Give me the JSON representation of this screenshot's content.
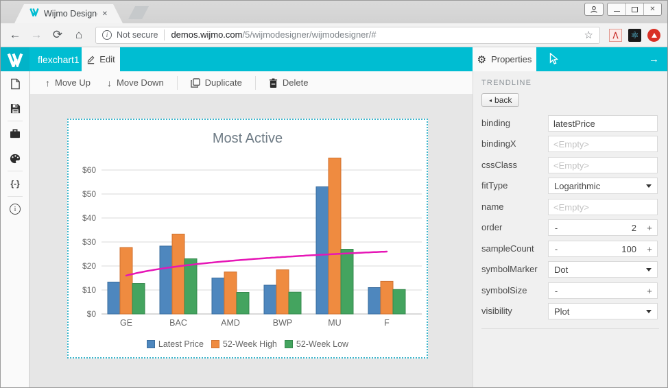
{
  "browser": {
    "tab_title": "Wijmo Designer",
    "close_glyph": "✕",
    "secure_label": "Not secure",
    "url_host": "demos.wijmo.com",
    "url_path": "/5/wijmodesigner/wijmodesigner/#"
  },
  "icons": {
    "back_arrow": "←",
    "forward_arrow": "→",
    "reload": "⟳",
    "home": "⌂",
    "star": "☆",
    "minimize": "",
    "close": "✕",
    "gear": "⚙",
    "atom": "⚛",
    "move_up_arrow": "↑",
    "move_down_arrow": "↓",
    "header_right_arrow": "→",
    "braces": "{-}",
    "info": "i",
    "back_caret": "◂",
    "stepper_minus": "-",
    "stepper_plus": "+"
  },
  "header": {
    "chart_name": "flexchart1",
    "edit_label": "Edit",
    "properties_label": "Properties"
  },
  "toolbar": {
    "move_up": "Move Up",
    "move_down": "Move Down",
    "duplicate": "Duplicate",
    "delete": "Delete"
  },
  "properties_panel": {
    "section_title": "TRENDLINE",
    "back_label": "back",
    "fields": [
      {
        "label": "binding",
        "type": "text",
        "value": "latestPrice",
        "placeholder": ""
      },
      {
        "label": "bindingX",
        "type": "text",
        "value": "",
        "placeholder": "<Empty>"
      },
      {
        "label": "cssClass",
        "type": "text",
        "value": "",
        "placeholder": "<Empty>"
      },
      {
        "label": "fitType",
        "type": "dropdown",
        "value": "Logarithmic"
      },
      {
        "label": "name",
        "type": "text",
        "value": "",
        "placeholder": "<Empty>"
      },
      {
        "label": "order",
        "type": "stepper",
        "value": "2"
      },
      {
        "label": "sampleCount",
        "type": "stepper",
        "value": "100"
      },
      {
        "label": "symbolMarker",
        "type": "dropdown",
        "value": "Dot"
      },
      {
        "label": "symbolSize",
        "type": "stepper",
        "value": ""
      },
      {
        "label": "visibility",
        "type": "dropdown",
        "value": "Plot"
      }
    ]
  },
  "chart_data": {
    "type": "bar",
    "title": "Most Active",
    "categories": [
      "GE",
      "BAC",
      "AMD",
      "BWP",
      "MU",
      "F"
    ],
    "series": [
      {
        "name": "Latest Price",
        "color": "#4e87be",
        "stroke": "#3a6d9e",
        "values": [
          13.3,
          28.3,
          15.0,
          12.0,
          53.0,
          11.0
        ]
      },
      {
        "name": "52-Week High",
        "color": "#ef8b40",
        "stroke": "#cf7230",
        "values": [
          27.7,
          33.3,
          17.5,
          18.4,
          65.0,
          13.6
        ]
      },
      {
        "name": "52-Week Low",
        "color": "#44a45f",
        "stroke": "#35894c",
        "values": [
          12.7,
          23.0,
          9.0,
          9.1,
          27.0,
          10.2
        ]
      }
    ],
    "trendline": {
      "fit": "Logarithmic",
      "color": "#e616b6",
      "start_value": 16,
      "end_value": 26
    },
    "y_prefix": "$",
    "yticks": [
      0,
      10,
      20,
      30,
      40,
      50,
      60
    ],
    "ylim": [
      0,
      66
    ],
    "grid": true,
    "legend_position": "bottom"
  },
  "colors": {
    "accent_teal": "#00bdd2",
    "selection_border": "#3db6cc"
  }
}
